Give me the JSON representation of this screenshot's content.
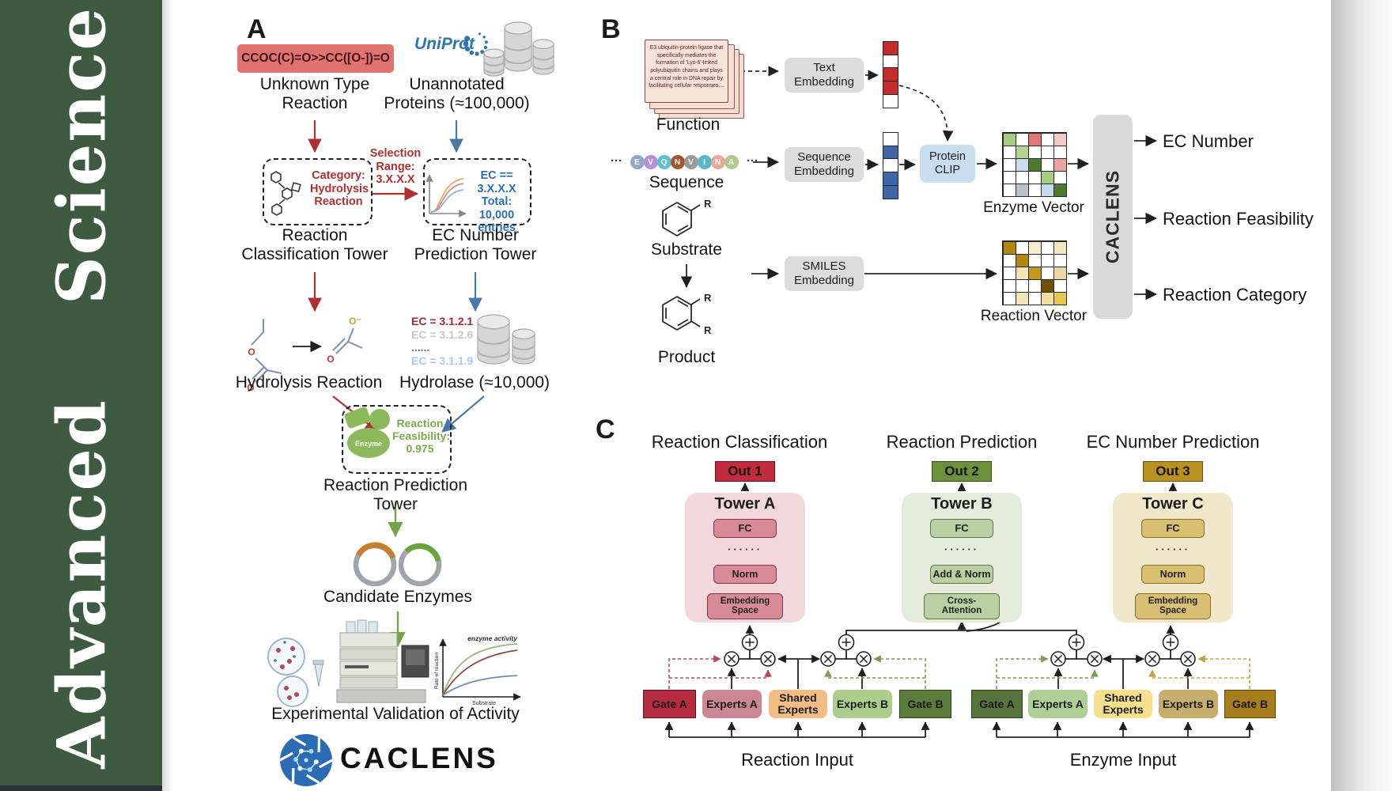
{
  "sidebar": {
    "journal": "Advanced Science",
    "bg": "#3e5a41",
    "accent_strip": "#25313c"
  },
  "panel_a": {
    "label": "A",
    "smiles": "CCOC(C)=O>>CC([O-])=O",
    "smiles_bg": "#e0736f",
    "unknown_label": "Unknown Type\nReaction",
    "uniprot": "UniProt",
    "unannotated_label": "Unannotated\nProteins (≈100,000)",
    "selection_label": "Selection\nRange:\n3.X.X.X",
    "category_label": "Category:\nHydrolysis\nReaction",
    "ec_filter_label": "EC == 3.X.X.X\nTotal: 10,000\nentries",
    "classification_tower_label": "Reaction\nClassification Tower",
    "ec_tower_label": "EC Number\nPrediction Tower",
    "hydrolysis_label": "Hydrolysis Reaction",
    "hydrolase_label": "Hydrolase (≈10,000)",
    "ec_list": [
      {
        "text": "EC = 3.1.2.1",
        "color": "#a32633"
      },
      {
        "text": "EC = 3.1.2.6",
        "color": "#c6c6c6"
      },
      {
        "text": "......",
        "color": "#6a6a6a"
      },
      {
        "text": "EC = 3.1.1.9",
        "color": "#a9c7e8"
      }
    ],
    "enzyme_icon_label": "Enzyme",
    "feasibility_label": "Reaction\nFeasibility:\n0.975",
    "prediction_tower_label": "Reaction Prediction Tower",
    "candidate_label": "Candidate Enzymes",
    "activity_plot": {
      "annotation": "enzyme activity",
      "ylabel": "Rate of reaction",
      "xlabel": "Substrate"
    },
    "validation_label": "Experimental Validation of Activity",
    "brand": "CACLENS",
    "atoms": {
      "ester_o": "O",
      "ester_o2": "O",
      "carboxylate_o": "O⁻",
      "carboxylate_o2": "O"
    }
  },
  "panel_b": {
    "label": "B",
    "function_card": "E3 ubiquitin-protein ligase that specifically mediates the formation of 'Lys-6'-linked polyubiquitin chains and plays a central role in DNA repair by facilitating cellular responses....",
    "function_label": "Function",
    "text_embedding": "Text\nEmbedding",
    "dots_left": "···",
    "dots_right": "···",
    "sequence": [
      {
        "ch": "E",
        "color": "#8fa8c8"
      },
      {
        "ch": "V",
        "color": "#b78fd6"
      },
      {
        "ch": "Q",
        "color": "#5ec0cf"
      },
      {
        "ch": "N",
        "color": "#a5562b"
      },
      {
        "ch": "V",
        "color": "#9a9a9a"
      },
      {
        "ch": "I",
        "color": "#57b8c9"
      },
      {
        "ch": "N",
        "color": "#e8a79e"
      },
      {
        "ch": "A",
        "color": "#b3c98b"
      }
    ],
    "sequence_label": "Sequence",
    "sequence_embedding": "Sequence\nEmbedding",
    "protein_clip": "Protein\nCLIP",
    "substrate_label": "Substrate",
    "product_label": "Product",
    "r_label": "R",
    "smiles_embedding": "SMILES\nEmbedding",
    "enzyme_vector_label": "Enzyme Vector",
    "reaction_vector_label": "Reaction Vector",
    "caclens": "CACLENS",
    "outputs": [
      "EC Number",
      "Reaction Feasibility",
      "Reaction Category"
    ],
    "vectors": {
      "function_vec": [
        "#c52b2b",
        "#ffffff",
        "#c52b2b",
        "#c52b2b",
        "#ffffff"
      ],
      "sequence_vec": [
        "#ffffff",
        "#3f66a8",
        "#ffffff",
        "#3f66a8",
        "#3f66a8"
      ],
      "enzyme_grid": [
        "#a9cc82",
        "#ffffff",
        "#e0767a",
        "#ffffff",
        "#f4c9c9",
        "#ffffff",
        "#b5d492",
        "#ffffff",
        "#ffffff",
        "#ffffff",
        "#ffffff",
        "#ccdcee",
        "#4f7a2d",
        "#ffffff",
        "#eda3a3",
        "#ffffff",
        "#ffffff",
        "#ffffff",
        "#a9cc82",
        "#ffffff",
        "#ffffff",
        "#b9c3cb",
        "#ffffff",
        "#c5d8ec",
        "#4f7a2d"
      ],
      "reaction_grid": [
        "#b5860e",
        "#ffffff",
        "#f6eecb",
        "#ffffff",
        "#f3e9c0",
        "#ffffff",
        "#b5860e",
        "#ffffff",
        "#ffffff",
        "#ffffff",
        "#ffffff",
        "#f3e6b6",
        "#c3961c",
        "#ffffff",
        "#ead9a4",
        "#ffffff",
        "#ffffff",
        "#ffffff",
        "#6e4f08",
        "#ffffff",
        "#ffffff",
        "#f3e6b6",
        "#ffffff",
        "#f0dfa0",
        "#e6c64e"
      ]
    }
  },
  "panel_c": {
    "label": "C",
    "columns": [
      {
        "title": "Reaction Classification",
        "out": "Out 1",
        "out_bg": "#c22a40",
        "out_border": "#6f0f1f",
        "tower": "Tower A",
        "tower_bg": "#f2d8dc",
        "box_bg": "#d88a96",
        "box_border": "#7c3b47",
        "fc": "FC",
        "dots": "······",
        "mid": "Norm",
        "bottom": "Embedding\nSpace"
      },
      {
        "title": "Reaction Prediction",
        "out": "Out 2",
        "out_bg": "#6e8f3e",
        "out_border": "#394f1a",
        "tower": "Tower B",
        "tower_bg": "#e5ecdb",
        "box_bg": "#b9d0a2",
        "box_border": "#5c7a40",
        "fc": "FC",
        "dots": "······",
        "mid": "Add & Norm",
        "bottom": "Cross-\nAttention"
      },
      {
        "title": "EC Number Prediction",
        "out": "Out 3",
        "out_bg": "#b8911e",
        "out_border": "#66500e",
        "tower": "Tower C",
        "tower_bg": "#f1e8cb",
        "box_bg": "#d9bf72",
        "box_border": "#8a6d28",
        "fc": "FC",
        "dots": "······",
        "mid": "Norm",
        "bottom": "Embedding\nSpace"
      }
    ],
    "moe": {
      "reaction": {
        "input_label": "Reaction Input",
        "boxes": [
          {
            "label": "Gate A",
            "bg": "#b52b40",
            "border": "#5f0f1e",
            "gate": true
          },
          {
            "label": "Experts A",
            "bg": "#cb8893"
          },
          {
            "label": "Shared\nExperts",
            "bg": "#f2bc85"
          },
          {
            "label": "Experts B",
            "bg": "#abce8a"
          },
          {
            "label": "Gate B",
            "bg": "#5c7c3c",
            "border": "#2f4416",
            "gate": true
          }
        ]
      },
      "enzyme": {
        "input_label": "Enzyme Input",
        "boxes": [
          {
            "label": "Gate A",
            "bg": "#57743c",
            "border": "#2c3d1a",
            "gate": true
          },
          {
            "label": "Experts A",
            "bg": "#aed096"
          },
          {
            "label": "Shared\nExperts",
            "bg": "#f6e08e"
          },
          {
            "label": "Experts B",
            "bg": "#c8ae6e"
          },
          {
            "label": "Gate B",
            "bg": "#a87e1c",
            "border": "#5c430c",
            "gate": true
          }
        ]
      }
    }
  }
}
